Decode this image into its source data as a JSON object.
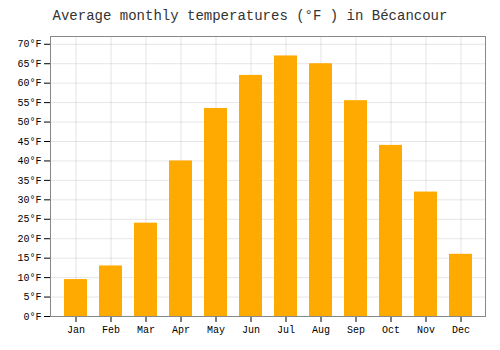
{
  "chart_data": {
    "type": "bar",
    "title": "Average monthly temperatures (°F ) in Bécancour",
    "categories": [
      "Jan",
      "Feb",
      "Mar",
      "Apr",
      "May",
      "Jun",
      "Jul",
      "Aug",
      "Sep",
      "Oct",
      "Nov",
      "Dec"
    ],
    "values": [
      9.5,
      13.0,
      24.0,
      40.0,
      53.5,
      62.0,
      67.0,
      65.0,
      55.5,
      44.0,
      32.0,
      16.0
    ],
    "color": "#FFAA00",
    "ylim": [
      0,
      72
    ],
    "yticks": [
      {
        "value": 0,
        "label": "0°F"
      },
      {
        "value": 5,
        "label": "5°F"
      },
      {
        "value": 10,
        "label": "10°F"
      },
      {
        "value": 15,
        "label": "15°F"
      },
      {
        "value": 20,
        "label": "20°F"
      },
      {
        "value": 25,
        "label": "25°F"
      },
      {
        "value": 30,
        "label": "30°F"
      },
      {
        "value": 35,
        "label": "35°F"
      },
      {
        "value": 40,
        "label": "40°F"
      },
      {
        "value": 45,
        "label": "45°F"
      },
      {
        "value": 50,
        "label": "50°F"
      },
      {
        "value": 55,
        "label": "55°F"
      },
      {
        "value": 60,
        "label": "60°F"
      },
      {
        "value": 65,
        "label": "65°F"
      },
      {
        "value": 70,
        "label": "70°F"
      }
    ],
    "grid": true
  }
}
